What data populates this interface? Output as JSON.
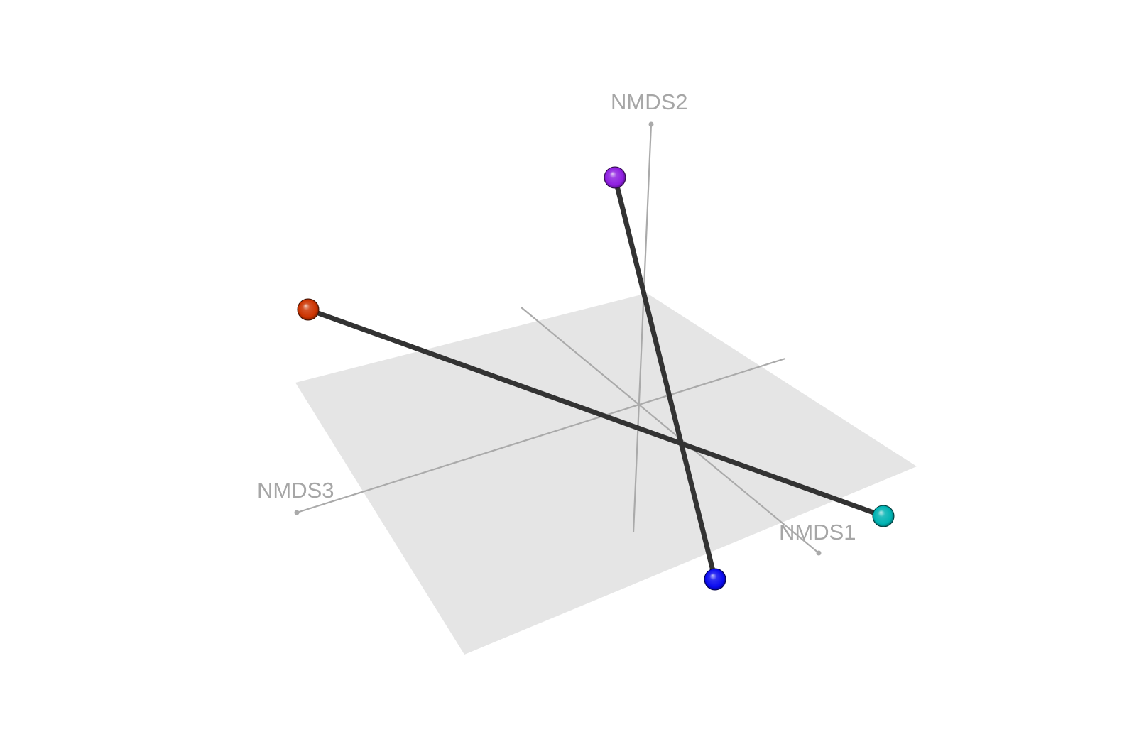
{
  "chart_data": {
    "type": "scatter",
    "title": "",
    "axes": [
      {
        "name": "NMDS1",
        "label": "NMDS1"
      },
      {
        "name": "NMDS2",
        "label": "NMDS2"
      },
      {
        "name": "NMDS3",
        "label": "NMDS3"
      }
    ],
    "grid": false,
    "legend": "none",
    "reference_plane": "NMDS1-NMDS3",
    "points": [
      {
        "id": "orange",
        "color": "#cc3300"
      },
      {
        "id": "cyan",
        "color": "#00b3b3"
      },
      {
        "id": "purple",
        "color": "#8e1ee0"
      },
      {
        "id": "blue",
        "color": "#0a0af0"
      }
    ],
    "segments": [
      {
        "from": "orange",
        "to": "cyan"
      },
      {
        "from": "purple",
        "to": "blue"
      }
    ]
  },
  "style": {
    "plane_color": "#e5e5e5",
    "axis_color": "#aaaaaa",
    "label_color": "#a6a6a6",
    "segment_color": "#333333"
  }
}
